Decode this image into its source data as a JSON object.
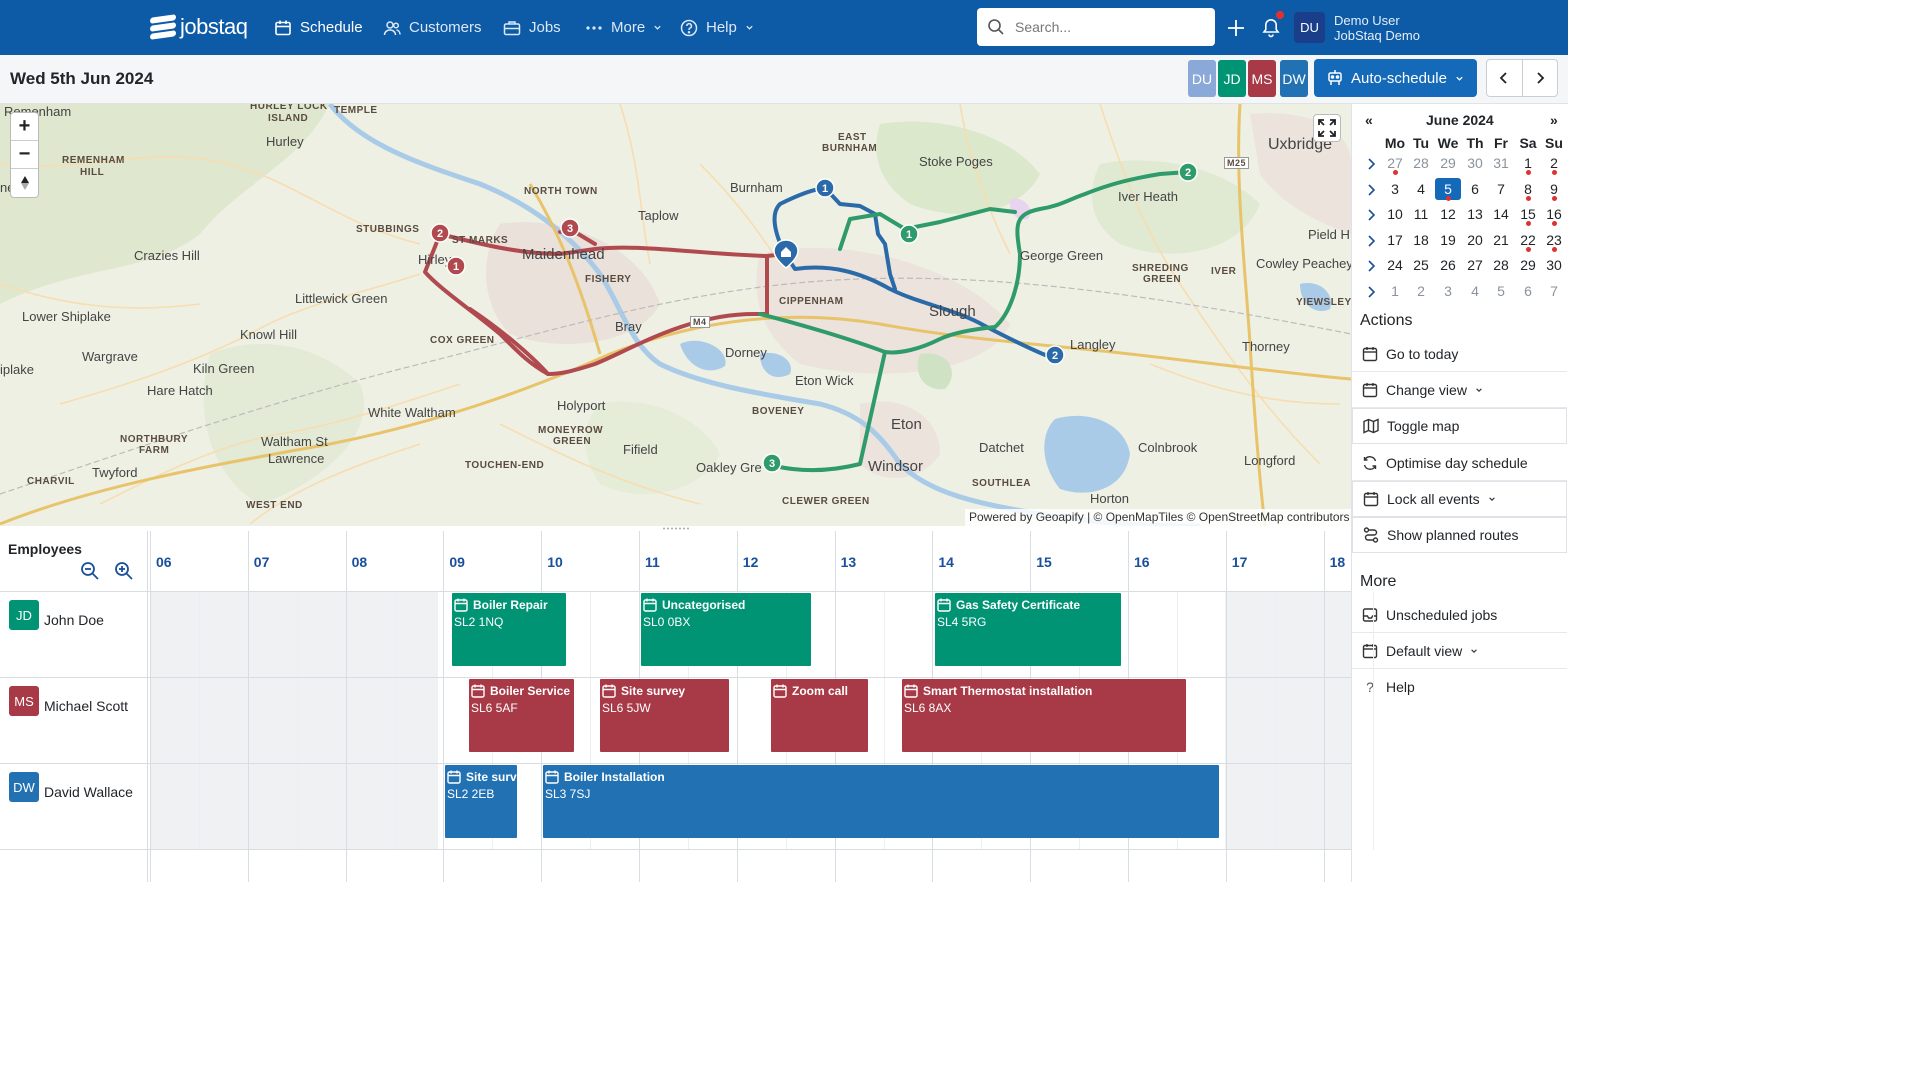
{
  "app": {
    "logo_text": "jobstaq"
  },
  "nav": {
    "schedule": "Schedule",
    "customers": "Customers",
    "jobs": "Jobs",
    "more": "More",
    "help": "Help"
  },
  "search": {
    "placeholder": "Search..."
  },
  "user": {
    "initials": "DU",
    "name": "Demo User",
    "org": "JobStaq Demo"
  },
  "toolbar": {
    "date": "Wed 5th Jun 2024",
    "chips": [
      "DU",
      "JD",
      "MS",
      "DW"
    ],
    "auto_schedule": "Auto-schedule"
  },
  "map": {
    "attribution": "Powered by Geoapify | © OpenMapTiles © OpenStreetMap contributors",
    "places": [
      "Remenham",
      "Hurley",
      "Taplow",
      "Burnham",
      "Stoke Poges",
      "Uxbridge",
      "Crazies Hill",
      "Maidenhead",
      "Littlewick Green",
      "Lower Shiplake",
      "Knowl Hill",
      "Wargrave",
      "Kiln Green",
      "Hare Hatch",
      "Bray",
      "Dorney",
      "Eton Wick",
      "Slough",
      "Langley",
      "Thorney",
      "George Green",
      "Iver Heath",
      "Pield H",
      "Cowley Peachey",
      "Holyport",
      "White Waltham",
      "Waltham St",
      "Lawrence",
      "Twyford",
      "Fifield",
      "Oakley Gre",
      "Windsor",
      "Eton",
      "Datchet",
      "Colnbrook",
      "Longford",
      "Horton",
      "Hirley",
      "iplake",
      "ne"
    ],
    "district_labels": [
      "HURLEY LOCK",
      "ISLAND",
      "TEMPLE",
      "REMENHAM",
      "HILL",
      "EAST",
      "BURNHAM",
      "NORTH TOWN",
      "STUBBINGS",
      "ST MARKS",
      "FISHERY",
      "CIPPENHAM",
      "COX GREEN",
      "SHREDING",
      "GREEN",
      "IVER",
      "YIEWSLEY",
      "MONEYROW",
      "GREEN",
      "BOVENEY",
      "NORTHBURY",
      "FARM",
      "TOUCHEN-END",
      "CHARVIL",
      "WEST END",
      "SOUTHLEA",
      "CLEWER GREEN",
      "M4",
      "M25"
    ],
    "route_markers": [
      {
        "route": "red",
        "num": "1"
      },
      {
        "route": "red",
        "num": "2"
      },
      {
        "route": "red",
        "num": "3"
      },
      {
        "route": "blue",
        "num": "1"
      },
      {
        "route": "blue",
        "num": "2"
      },
      {
        "route": "green",
        "num": "1"
      },
      {
        "route": "green",
        "num": "2"
      },
      {
        "route": "green",
        "num": "3"
      }
    ]
  },
  "calendar": {
    "title": "June 2024",
    "prev": "«",
    "next": "»",
    "weekdays": [
      "Mo",
      "Tu",
      "We",
      "Th",
      "Fr",
      "Sa",
      "Su"
    ],
    "weeks": [
      [
        "27",
        "28",
        "29",
        "30",
        "31",
        "1",
        "2"
      ],
      [
        "3",
        "4",
        "5",
        "6",
        "7",
        "8",
        "9"
      ],
      [
        "10",
        "11",
        "12",
        "13",
        "14",
        "15",
        "16"
      ],
      [
        "17",
        "18",
        "19",
        "20",
        "21",
        "22",
        "23"
      ],
      [
        "24",
        "25",
        "26",
        "27",
        "28",
        "29",
        "30"
      ],
      [
        "1",
        "2",
        "3",
        "4",
        "5",
        "6",
        "7"
      ]
    ],
    "today": "5"
  },
  "actions": {
    "title": "Actions",
    "items": [
      "Go to today",
      "Change view",
      "Toggle map",
      "Optimise day schedule",
      "Lock all events",
      "Show planned routes"
    ]
  },
  "more": {
    "title": "More",
    "items": [
      "Unscheduled jobs",
      "Default view",
      "Help"
    ]
  },
  "schedule": {
    "employees_header": "Employees",
    "hours": [
      "06",
      "07",
      "08",
      "09",
      "10",
      "11",
      "12",
      "13",
      "14",
      "15",
      "16",
      "17",
      "18"
    ],
    "employees": [
      {
        "initials": "JD",
        "name": "John Doe",
        "color": "#009474"
      },
      {
        "initials": "MS",
        "name": "Michael Scott",
        "color": "#a83946"
      },
      {
        "initials": "DW",
        "name": "David Wallace",
        "color": "#2272b3"
      }
    ],
    "events": [
      {
        "title": "Boiler Repair",
        "postcode": "SL2 1NQ"
      },
      {
        "title": "Uncategorised",
        "postcode": "SL0 0BX"
      },
      {
        "title": "Gas Safety Certificate",
        "postcode": "SL4 5RG"
      },
      {
        "title": "Boiler Service",
        "postcode": "SL6 5AF"
      },
      {
        "title": "Site survey",
        "postcode": "SL6 5JW"
      },
      {
        "title": "Zoom call",
        "postcode": ""
      },
      {
        "title": "Smart Thermostat installation",
        "postcode": "SL6 8AX"
      },
      {
        "title": "Site survey",
        "postcode": "SL2 2EB"
      },
      {
        "title": "Boiler Installation",
        "postcode": "SL3 7SJ"
      }
    ]
  },
  "colors": {
    "brand": "#0d5aa7",
    "accent": "#1469b8",
    "john": "#009474",
    "michael": "#a83946",
    "david": "#2272b3",
    "du": "#8aa8d8"
  }
}
